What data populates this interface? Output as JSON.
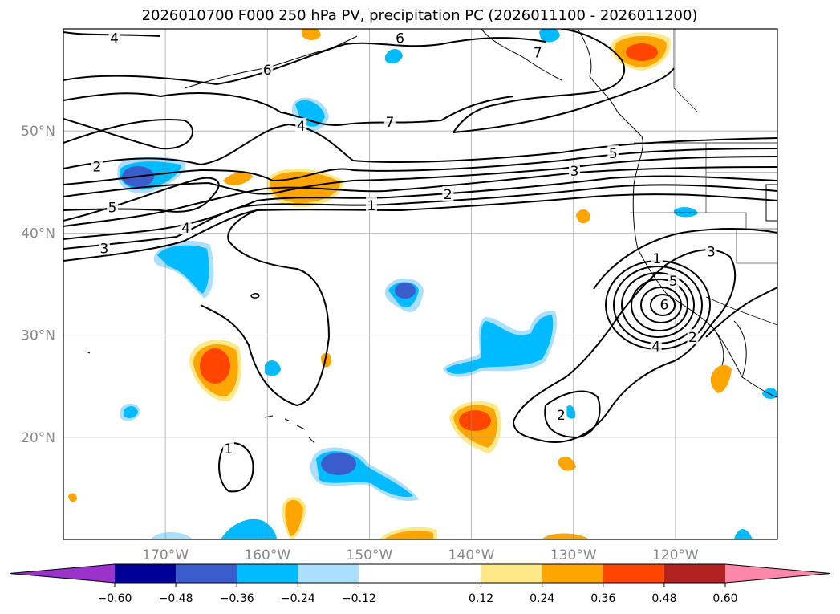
{
  "chart_data": {
    "type": "contour-map",
    "title": "2026010700 F000 250 hPa PV, precipitation PC (2026011100 - 2026011200)",
    "map_extent": {
      "lon": [
        -180,
        -110
      ],
      "lat": [
        10,
        60
      ]
    },
    "grid": true,
    "lon_ticks": [
      {
        "value": -170,
        "label": "170°W"
      },
      {
        "value": -160,
        "label": "160°W"
      },
      {
        "value": -150,
        "label": "150°W"
      },
      {
        "value": -140,
        "label": "140°W"
      },
      {
        "value": -130,
        "label": "130°W"
      },
      {
        "value": -120,
        "label": "120°W"
      }
    ],
    "lat_ticks": [
      {
        "value": 20,
        "label": "20°N"
      },
      {
        "value": 30,
        "label": "30°N"
      },
      {
        "value": 40,
        "label": "40°N"
      },
      {
        "value": 50,
        "label": "50°N"
      }
    ],
    "pv_contour_levels": [
      1,
      2,
      3,
      4,
      5,
      6,
      7
    ],
    "pv_contour_labels": [
      {
        "text": "4",
        "lon": -175,
        "lat": 59.1
      },
      {
        "text": "6",
        "lon": -147,
        "lat": 59.1
      },
      {
        "text": "6",
        "lon": -160,
        "lat": 56.0
      },
      {
        "text": "7",
        "lon": -133.5,
        "lat": 57.7
      },
      {
        "text": "7",
        "lon": -148,
        "lat": 50.9
      },
      {
        "text": "4",
        "lon": -156.7,
        "lat": 50.5
      },
      {
        "text": "5",
        "lon": -126.1,
        "lat": 47.8
      },
      {
        "text": "3",
        "lon": -129.9,
        "lat": 46.1
      },
      {
        "text": "2",
        "lon": -142.3,
        "lat": 43.8
      },
      {
        "text": "1",
        "lon": -149.8,
        "lat": 42.7
      },
      {
        "text": "2",
        "lon": -176.7,
        "lat": 46.5
      },
      {
        "text": "5",
        "lon": -175.2,
        "lat": 42.5
      },
      {
        "text": "4",
        "lon": -168.0,
        "lat": 40.5
      },
      {
        "text": "3",
        "lon": -176.0,
        "lat": 38.5
      },
      {
        "text": "1",
        "lon": -121.8,
        "lat": 37.5
      },
      {
        "text": "3",
        "lon": -116.5,
        "lat": 38.2
      },
      {
        "text": "5",
        "lon": -120.2,
        "lat": 35.3
      },
      {
        "text": "6",
        "lon": -121.1,
        "lat": 33.0
      },
      {
        "text": "4",
        "lon": -121.9,
        "lat": 28.9
      },
      {
        "text": "2",
        "lon": -118.3,
        "lat": 29.8
      },
      {
        "text": "2",
        "lon": -131.2,
        "lat": 22.2
      },
      {
        "text": "1",
        "lon": -163.8,
        "lat": 18.9
      }
    ],
    "colorbar": {
      "ticks": [
        -0.6,
        -0.48,
        -0.36,
        -0.24,
        -0.12,
        0.12,
        0.24,
        0.36,
        0.48,
        0.6
      ],
      "tick_labels": [
        "−0.60",
        "−0.48",
        "−0.36",
        "−0.24",
        "−0.12",
        "0.12",
        "0.24",
        "0.36",
        "0.48",
        "0.60"
      ],
      "colors": [
        "#9933cc",
        "#000099",
        "#3a5ccc",
        "#00bbff",
        "#aadfff",
        "#ffffff",
        "#ffe888",
        "#ffa500",
        "#ff4500",
        "#b22222",
        "#ff88aa"
      ],
      "extend": "both"
    }
  }
}
